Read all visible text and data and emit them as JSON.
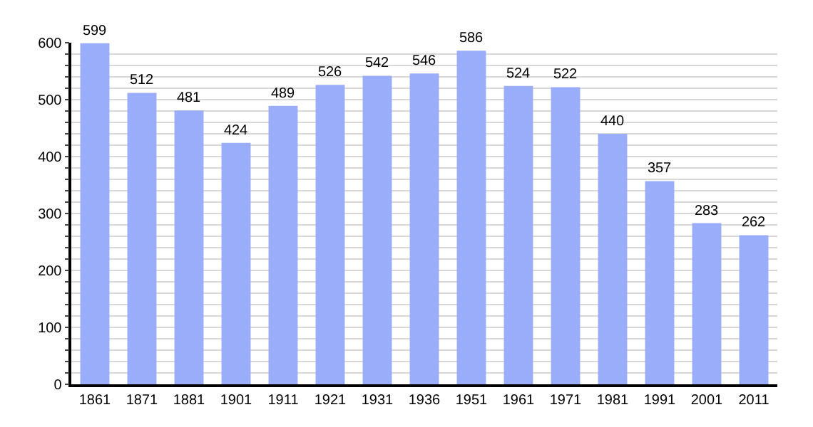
{
  "chart_data": {
    "type": "bar",
    "categories": [
      "1861",
      "1871",
      "1881",
      "1901",
      "1911",
      "1921",
      "1931",
      "1936",
      "1951",
      "1961",
      "1971",
      "1981",
      "1991",
      "2001",
      "2011"
    ],
    "values": [
      599,
      512,
      481,
      424,
      489,
      526,
      542,
      546,
      586,
      524,
      522,
      440,
      357,
      283,
      262
    ],
    "color": "#9aadfb",
    "data_labels": true,
    "ylim": [
      0,
      600
    ],
    "yticks": [
      0,
      {
        "value": 20,
        "label": null
      },
      {
        "value": 40,
        "label": null
      },
      {
        "value": 60,
        "label": null
      },
      {
        "value": 80,
        "label": null
      },
      100,
      {
        "value": 120,
        "label": null
      },
      {
        "value": 140,
        "label": null
      },
      {
        "value": 160,
        "label": null
      },
      {
        "value": 180,
        "label": null
      },
      200,
      {
        "value": 220,
        "label": null
      },
      {
        "value": 240,
        "label": null
      },
      {
        "value": 260,
        "label": null
      },
      {
        "value": 280,
        "label": null
      },
      300,
      {
        "value": 320,
        "label": null
      },
      {
        "value": 340,
        "label": null
      },
      {
        "value": 360,
        "label": null
      },
      {
        "value": 380,
        "label": null
      },
      400,
      {
        "value": 420,
        "label": null
      },
      {
        "value": 440,
        "label": null
      },
      {
        "value": 460,
        "label": null
      },
      {
        "value": 480,
        "label": null
      },
      500,
      {
        "value": 520,
        "label": null
      },
      {
        "value": 540,
        "label": null
      },
      {
        "value": 560,
        "label": null
      },
      {
        "value": 580,
        "label": null
      },
      600
    ],
    "grid": "y"
  }
}
